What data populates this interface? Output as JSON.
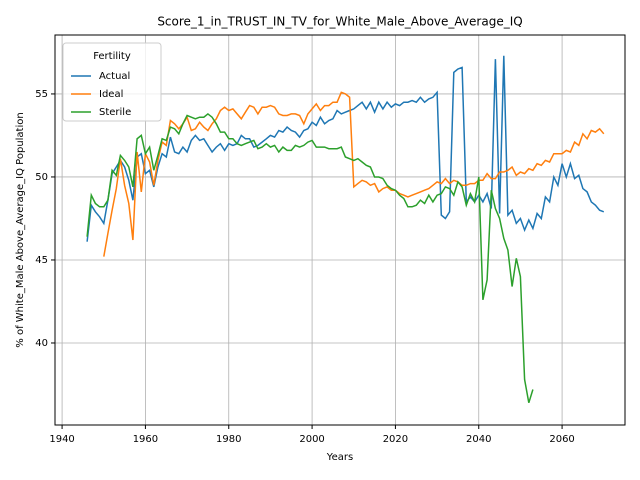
{
  "chart_data": {
    "type": "line",
    "title": "Score_1_in_TRUST_IN_TV_for_White_Male_Above_Average_IQ",
    "x_label": "Years",
    "y_label": "% of White_Male Above_Average_IQ Population",
    "legend_title": "Fertility",
    "legend_position": "upper left",
    "grid": true,
    "xlim": [
      1938.3,
      2075.1
    ],
    "ylim": [
      35.06,
      58.55
    ],
    "xticks": [
      1940,
      1960,
      1980,
      2000,
      2020,
      2040,
      2060
    ],
    "yticks": [
      40,
      45,
      50,
      55
    ],
    "x": [
      1946,
      1947,
      1948,
      1949,
      1950,
      1951,
      1952,
      1953,
      1954,
      1955,
      1956,
      1957,
      1958,
      1959,
      1960,
      1961,
      1962,
      1963,
      1964,
      1965,
      1966,
      1967,
      1968,
      1969,
      1970,
      1971,
      1972,
      1973,
      1974,
      1975,
      1976,
      1977,
      1978,
      1979,
      1980,
      1981,
      1982,
      1983,
      1984,
      1985,
      1986,
      1987,
      1988,
      1989,
      1990,
      1991,
      1992,
      1993,
      1994,
      1995,
      1996,
      1997,
      1998,
      1999,
      2000,
      2001,
      2002,
      2003,
      2004,
      2005,
      2006,
      2007,
      2008,
      2009,
      2010,
      2011,
      2012,
      2013,
      2014,
      2015,
      2016,
      2017,
      2018,
      2019,
      2020,
      2021,
      2022,
      2023,
      2024,
      2025,
      2026,
      2027,
      2028,
      2029,
      2030,
      2031,
      2032,
      2033,
      2034,
      2035,
      2036,
      2037,
      2038,
      2039,
      2040,
      2041,
      2042,
      2043,
      2044,
      2045,
      2046,
      2047,
      2048,
      2049,
      2050,
      2051,
      2052,
      2053,
      2054,
      2055,
      2056,
      2057,
      2058,
      2059,
      2060,
      2061,
      2062,
      2063,
      2064,
      2065,
      2066,
      2067,
      2068,
      2069,
      2070
    ],
    "series": [
      {
        "name": "Actual",
        "color": "#1f77b4",
        "values": [
          46.1,
          48.3,
          47.9,
          47.6,
          47.2,
          48.6,
          50.2,
          50.6,
          51.0,
          50.6,
          49.8,
          48.6,
          51.2,
          51.4,
          50.2,
          50.4,
          49.4,
          50.6,
          51.4,
          51.2,
          52.4,
          51.5,
          51.4,
          51.8,
          51.5,
          52.2,
          52.5,
          52.2,
          52.3,
          51.9,
          51.5,
          51.8,
          52.0,
          51.6,
          52.0,
          51.9,
          52.0,
          52.5,
          52.3,
          52.3,
          51.8,
          51.9,
          52.1,
          52.3,
          52.5,
          52.4,
          52.8,
          52.7,
          53.0,
          52.8,
          52.7,
          52.4,
          52.8,
          52.9,
          53.3,
          53.1,
          53.6,
          53.2,
          53.4,
          53.5,
          54.0,
          53.8,
          53.9,
          54.0,
          54.1,
          54.3,
          54.5,
          54.1,
          54.5,
          53.9,
          54.5,
          54.1,
          54.5,
          54.2,
          54.4,
          54.3,
          54.5,
          54.5,
          54.6,
          54.5,
          54.8,
          54.5,
          54.7,
          54.8,
          55.1,
          47.7,
          47.5,
          47.9,
          56.3,
          56.5,
          56.6,
          48.5,
          48.8,
          48.5,
          48.9,
          48.5,
          49.0,
          48.1,
          57.1,
          47.8,
          57.3,
          47.7,
          48.0,
          47.2,
          47.5,
          46.8,
          47.4,
          46.9,
          47.8,
          47.5,
          48.8,
          48.5,
          50.0,
          49.5,
          50.8,
          50.0,
          50.8,
          49.9,
          50.1,
          49.3,
          49.1,
          48.5,
          48.3,
          48.0,
          47.9
        ]
      },
      {
        "name": "Ideal",
        "color": "#ff7f0e",
        "values": [
          null,
          null,
          null,
          null,
          45.2,
          46.6,
          48.0,
          49.3,
          51.1,
          49.5,
          48.4,
          46.2,
          51.5,
          49.1,
          51.4,
          50.9,
          49.5,
          51.0,
          52.1,
          51.9,
          53.4,
          53.2,
          52.9,
          53.2,
          53.6,
          52.8,
          52.9,
          53.3,
          53.0,
          52.8,
          53.2,
          53.5,
          54.0,
          54.2,
          54.0,
          54.1,
          53.8,
          53.5,
          53.9,
          54.3,
          54.2,
          53.8,
          54.2,
          54.2,
          54.3,
          54.2,
          53.8,
          53.7,
          53.7,
          53.8,
          53.8,
          53.7,
          53.2,
          53.8,
          54.1,
          54.4,
          54.0,
          54.3,
          54.3,
          54.5,
          54.5,
          55.1,
          55.0,
          54.8,
          49.4,
          49.6,
          49.8,
          49.7,
          49.5,
          49.6,
          49.1,
          49.3,
          49.4,
          49.2,
          49.2,
          49.0,
          48.9,
          48.8,
          48.9,
          49.0,
          49.1,
          49.2,
          49.3,
          49.5,
          49.7,
          49.6,
          49.9,
          49.6,
          49.8,
          49.7,
          49.5,
          49.5,
          49.6,
          49.6,
          49.8,
          49.8,
          50.2,
          49.9,
          49.9,
          50.3,
          50.3,
          50.4,
          50.6,
          50.1,
          50.3,
          50.2,
          50.5,
          50.4,
          50.8,
          50.7,
          51.0,
          50.9,
          51.4,
          51.4,
          51.4,
          51.6,
          51.5,
          52.1,
          51.9,
          52.6,
          52.3,
          52.8,
          52.7,
          52.9,
          52.6
        ]
      },
      {
        "name": "Sterile",
        "color": "#2ca02c",
        "values": [
          46.4,
          48.9,
          48.4,
          48.2,
          48.2,
          48.6,
          50.4,
          50.1,
          51.3,
          51.0,
          50.6,
          49.4,
          52.3,
          52.5,
          51.4,
          51.8,
          50.4,
          51.3,
          52.3,
          52.2,
          53.0,
          52.9,
          52.6,
          53.2,
          53.7,
          53.6,
          53.5,
          53.6,
          53.6,
          53.8,
          53.6,
          53.2,
          52.7,
          52.7,
          52.3,
          52.3,
          52.0,
          51.9,
          52.0,
          52.1,
          52.2,
          51.7,
          51.8,
          52.0,
          51.8,
          51.9,
          51.5,
          51.8,
          51.6,
          51.6,
          51.9,
          51.8,
          51.9,
          52.1,
          52.2,
          51.8,
          51.8,
          51.8,
          51.7,
          51.7,
          51.7,
          51.8,
          51.2,
          51.1,
          51.0,
          51.1,
          50.9,
          50.7,
          50.6,
          50.0,
          50.0,
          49.9,
          49.5,
          49.3,
          49.2,
          48.9,
          48.7,
          48.2,
          48.2,
          48.3,
          48.6,
          48.4,
          48.9,
          48.5,
          48.9,
          49.0,
          49.4,
          49.3,
          48.9,
          49.7,
          49.4,
          48.3,
          49.0,
          48.5,
          50.0,
          42.6,
          43.8,
          49.2,
          48.1,
          47.5,
          46.3,
          45.6,
          43.4,
          45.1,
          44.0,
          37.8,
          36.4,
          37.2,
          null,
          null,
          null,
          null,
          null,
          null,
          null,
          null,
          null,
          null,
          null,
          null,
          null,
          null,
          null,
          null,
          null
        ]
      }
    ]
  }
}
